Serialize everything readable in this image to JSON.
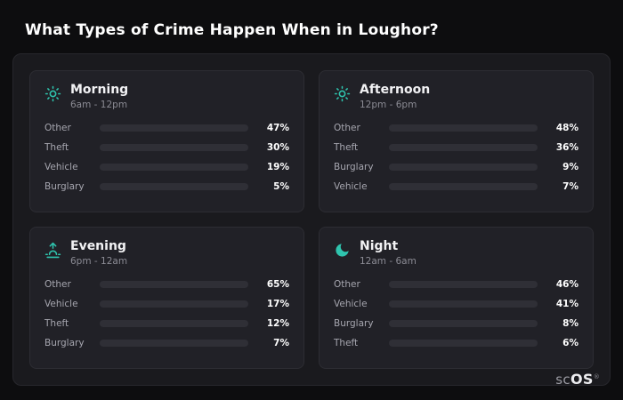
{
  "page": {
    "title": "What Types of Crime Happen When in Loughor?",
    "brand_prefix": "sc",
    "brand_suffix": "OS",
    "brand_mark": "®"
  },
  "colors": {
    "accent_teal": "#2fc4ae",
    "other": "#8da0b9",
    "theft": "#a855f7",
    "vehicle": "#3b82f6",
    "burglary": "#f97316",
    "panel_bg": "#1a1a1e",
    "card_bg": "#212127",
    "track_bg": "#2f2f36"
  },
  "chart_data": [
    {
      "type": "bar",
      "title": "Morning",
      "subtitle": "6am - 12pm",
      "icon": "sun-icon",
      "xlim": [
        0,
        100
      ],
      "categories": [
        "Other",
        "Theft",
        "Vehicle",
        "Burglary"
      ],
      "values": [
        47,
        30,
        19,
        5
      ],
      "value_labels": [
        "47%",
        "30%",
        "19%",
        "5%"
      ],
      "colors": [
        "#8da0b9",
        "#a855f7",
        "#3b82f6",
        "#f97316"
      ]
    },
    {
      "type": "bar",
      "title": "Afternoon",
      "subtitle": "12pm - 6pm",
      "icon": "sun-icon",
      "xlim": [
        0,
        100
      ],
      "categories": [
        "Other",
        "Theft",
        "Burglary",
        "Vehicle"
      ],
      "values": [
        48,
        36,
        9,
        7
      ],
      "value_labels": [
        "48%",
        "36%",
        "9%",
        "7%"
      ],
      "colors": [
        "#8da0b9",
        "#a855f7",
        "#f97316",
        "#3b82f6"
      ]
    },
    {
      "type": "bar",
      "title": "Evening",
      "subtitle": "6pm - 12am",
      "icon": "sunrise-icon",
      "xlim": [
        0,
        100
      ],
      "categories": [
        "Other",
        "Vehicle",
        "Theft",
        "Burglary"
      ],
      "values": [
        65,
        17,
        12,
        7
      ],
      "value_labels": [
        "65%",
        "17%",
        "12%",
        "7%"
      ],
      "colors": [
        "#8da0b9",
        "#3b82f6",
        "#a855f7",
        "#f97316"
      ]
    },
    {
      "type": "bar",
      "title": "Night",
      "subtitle": "12am - 6am",
      "icon": "moon-icon",
      "xlim": [
        0,
        100
      ],
      "categories": [
        "Other",
        "Vehicle",
        "Burglary",
        "Theft"
      ],
      "values": [
        46,
        41,
        8,
        6
      ],
      "value_labels": [
        "46%",
        "41%",
        "8%",
        "6%"
      ],
      "colors": [
        "#8da0b9",
        "#3b82f6",
        "#f97316",
        "#a855f7"
      ]
    }
  ]
}
